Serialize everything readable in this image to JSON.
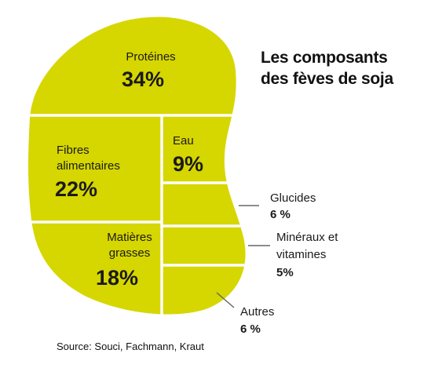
{
  "chart_data": {
    "type": "pie",
    "title_lines": [
      "Les composants",
      "des fèves de soja"
    ],
    "source": "Source: Souci, Fachmann, Kraut",
    "fill_color": "#d6d600",
    "outline_color": "#1a1a1a",
    "segments": [
      {
        "label": "Protéines",
        "value": 34,
        "value_label": "34%"
      },
      {
        "label": "Fibres alimentaires",
        "value": 22,
        "value_label": "22%"
      },
      {
        "label": "Matières grasses",
        "value": 18,
        "value_label": "18%"
      },
      {
        "label": "Eau",
        "value": 9,
        "value_label": "9%"
      },
      {
        "label": "Glucides",
        "value": 6,
        "value_label": "6 %"
      },
      {
        "label": "Minéraux et vitamines",
        "value": 5,
        "value_label": "5%"
      },
      {
        "label": "Autres",
        "value": 6,
        "value_label": "6 %"
      }
    ]
  }
}
